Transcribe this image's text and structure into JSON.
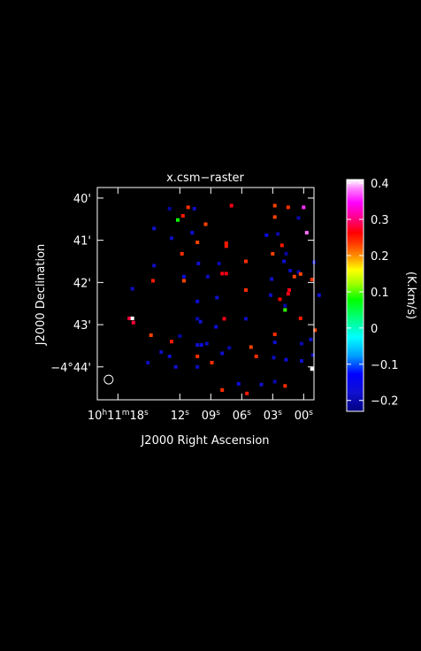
{
  "chart_data": {
    "type": "heatmap",
    "title": "x.csm−raster",
    "xlabel": "J2000 Right Ascension",
    "ylabel": "J2000 Declination",
    "x_ticks": [
      {
        "ra_sec": 18,
        "label_main": "10",
        "label_sup": "h",
        "label_mid": "11",
        "label_sup2": "m",
        "label_end": "18",
        "label_sup3": "s"
      },
      {
        "ra_sec": 12,
        "label_main": "12",
        "label_sup": "s"
      },
      {
        "ra_sec": 9,
        "label_main": "09",
        "label_sup": "s"
      },
      {
        "ra_sec": 6,
        "label_main": "06",
        "label_sup": "s"
      },
      {
        "ra_sec": 3,
        "label_main": "03",
        "label_sup": "s"
      },
      {
        "ra_sec": 0,
        "label_main": "00",
        "label_sup": "s"
      }
    ],
    "y_ticks": [
      {
        "dec_arcmin": 40,
        "label": "40'"
      },
      {
        "dec_arcmin": 41,
        "label": "41'"
      },
      {
        "dec_arcmin": 42,
        "label": "42'"
      },
      {
        "dec_arcmin": 43,
        "label": "43'"
      },
      {
        "dec_arcmin": 44,
        "label": "−4°44'"
      }
    ],
    "ra_range_sec": [
      20.0,
      -1.0
    ],
    "dec_range_arcmin": [
      39.75,
      44.78
    ],
    "colorbar": {
      "label": "(K.km/s)",
      "range": [
        -0.23,
        0.41
      ],
      "ticks": [
        0.4,
        0.3,
        0.2,
        0.1,
        0,
        -0.1,
        -0.2
      ],
      "tick_labels": [
        "0.4",
        "0.3",
        "0.2",
        "0.1",
        "0",
        "−0.1",
        "−0.2"
      ]
    },
    "beam": {
      "ra_sec": 18.9,
      "dec_arcmin": 44.3
    },
    "points": [
      {
        "ra": 13.0,
        "dec": 40.25,
        "v": -0.21
      },
      {
        "ra": 11.2,
        "dec": 40.22,
        "v": 0.24
      },
      {
        "ra": 10.6,
        "dec": 40.25,
        "v": -0.19
      },
      {
        "ra": 7.0,
        "dec": 40.18,
        "v": 0.27
      },
      {
        "ra": 2.8,
        "dec": 40.18,
        "v": 0.23
      },
      {
        "ra": 0.0,
        "dec": 40.22,
        "v": 0.36
      },
      {
        "ra": 1.5,
        "dec": 40.22,
        "v": 0.24
      },
      {
        "ra": 11.7,
        "dec": 40.42,
        "v": 0.25
      },
      {
        "ra": 12.2,
        "dec": 40.52,
        "v": 0.08
      },
      {
        "ra": 2.8,
        "dec": 40.45,
        "v": 0.23
      },
      {
        "ra": 0.5,
        "dec": 40.47,
        "v": -0.2
      },
      {
        "ra": 14.5,
        "dec": 40.72,
        "v": -0.18
      },
      {
        "ra": 9.5,
        "dec": 40.62,
        "v": 0.23
      },
      {
        "ra": 10.8,
        "dec": 40.82,
        "v": -0.17
      },
      {
        "ra": 2.5,
        "dec": 40.85,
        "v": -0.2
      },
      {
        "ra": 3.6,
        "dec": 40.88,
        "v": -0.16
      },
      {
        "ra": -0.3,
        "dec": 40.82,
        "v": 0.38
      },
      {
        "ra": 12.8,
        "dec": 40.95,
        "v": -0.19
      },
      {
        "ra": 10.3,
        "dec": 41.05,
        "v": 0.23
      },
      {
        "ra": 7.5,
        "dec": 41.07,
        "v": 0.25
      },
      {
        "ra": 7.5,
        "dec": 41.14,
        "v": 0.25
      },
      {
        "ra": 2.1,
        "dec": 41.12,
        "v": 0.25
      },
      {
        "ra": 11.8,
        "dec": 41.32,
        "v": 0.24
      },
      {
        "ra": 3.0,
        "dec": 41.32,
        "v": 0.23
      },
      {
        "ra": 1.7,
        "dec": 41.32,
        "v": -0.21
      },
      {
        "ra": 14.5,
        "dec": 41.6,
        "v": -0.19
      },
      {
        "ra": 10.2,
        "dec": 41.55,
        "v": -0.18
      },
      {
        "ra": 8.2,
        "dec": 41.55,
        "v": -0.2
      },
      {
        "ra": 5.6,
        "dec": 41.5,
        "v": 0.24
      },
      {
        "ra": 1.9,
        "dec": 41.5,
        "v": -0.17
      },
      {
        "ra": -1.0,
        "dec": 41.52,
        "v": -0.2
      },
      {
        "ra": 11.6,
        "dec": 41.86,
        "v": -0.17
      },
      {
        "ra": 11.6,
        "dec": 41.96,
        "v": 0.23
      },
      {
        "ra": 9.3,
        "dec": 41.86,
        "v": -0.19
      },
      {
        "ra": 7.9,
        "dec": 41.79,
        "v": 0.27
      },
      {
        "ra": 7.5,
        "dec": 41.79,
        "v": 0.27
      },
      {
        "ra": 3.1,
        "dec": 41.92,
        "v": -0.18
      },
      {
        "ra": 0.9,
        "dec": 41.86,
        "v": 0.23
      },
      {
        "ra": 0.5,
        "dec": 41.75,
        "v": -0.2
      },
      {
        "ra": 1.3,
        "dec": 41.72,
        "v": -0.19
      },
      {
        "ra": 0.3,
        "dec": 41.8,
        "v": 0.23
      },
      {
        "ra": -0.8,
        "dec": 41.93,
        "v": 0.24
      },
      {
        "ra": 14.6,
        "dec": 41.96,
        "v": 0.25
      },
      {
        "ra": 16.6,
        "dec": 42.15,
        "v": -0.19
      },
      {
        "ra": 5.6,
        "dec": 42.18,
        "v": 0.24
      },
      {
        "ra": 3.2,
        "dec": 42.3,
        "v": -0.19
      },
      {
        "ra": 1.4,
        "dec": 42.18,
        "v": 0.27
      },
      {
        "ra": 1.5,
        "dec": 42.27,
        "v": 0.27
      },
      {
        "ra": -1.5,
        "dec": 42.3,
        "v": -0.17
      },
      {
        "ra": 10.3,
        "dec": 42.45,
        "v": -0.17
      },
      {
        "ra": 8.4,
        "dec": 42.36,
        "v": -0.18
      },
      {
        "ra": 1.8,
        "dec": 42.55,
        "v": -0.2
      },
      {
        "ra": 1.8,
        "dec": 42.65,
        "v": 0.09
      },
      {
        "ra": 2.3,
        "dec": 42.4,
        "v": 0.26
      },
      {
        "ra": 16.9,
        "dec": 42.85,
        "v": 0.28
      },
      {
        "ra": 16.6,
        "dec": 42.85,
        "v": 0.41
      },
      {
        "ra": 16.5,
        "dec": 42.95,
        "v": 0.28
      },
      {
        "ra": 10.3,
        "dec": 42.86,
        "v": -0.2
      },
      {
        "ra": 10.0,
        "dec": 42.93,
        "v": -0.18
      },
      {
        "ra": 7.7,
        "dec": 42.86,
        "v": 0.27
      },
      {
        "ra": 5.6,
        "dec": 42.86,
        "v": -0.19
      },
      {
        "ra": 0.3,
        "dec": 42.85,
        "v": 0.25
      },
      {
        "ra": 8.5,
        "dec": 43.05,
        "v": -0.17
      },
      {
        "ra": 14.8,
        "dec": 43.25,
        "v": 0.23
      },
      {
        "ra": 12.0,
        "dec": 43.27,
        "v": -0.21
      },
      {
        "ra": 2.8,
        "dec": 43.23,
        "v": 0.24
      },
      {
        "ra": -1.1,
        "dec": 43.13,
        "v": 0.23
      },
      {
        "ra": -0.7,
        "dec": 43.35,
        "v": -0.18
      },
      {
        "ra": 12.8,
        "dec": 43.4,
        "v": 0.25
      },
      {
        "ra": 10.3,
        "dec": 43.48,
        "v": -0.18
      },
      {
        "ra": 9.9,
        "dec": 43.48,
        "v": -0.17
      },
      {
        "ra": 9.4,
        "dec": 43.45,
        "v": -0.19
      },
      {
        "ra": 7.2,
        "dec": 43.55,
        "v": -0.2
      },
      {
        "ra": 5.1,
        "dec": 43.53,
        "v": 0.23
      },
      {
        "ra": 2.8,
        "dec": 43.42,
        "v": -0.18
      },
      {
        "ra": 0.2,
        "dec": 43.45,
        "v": -0.2
      },
      {
        "ra": 13.8,
        "dec": 43.65,
        "v": -0.19
      },
      {
        "ra": 13.0,
        "dec": 43.75,
        "v": -0.18
      },
      {
        "ra": 10.3,
        "dec": 43.75,
        "v": 0.24
      },
      {
        "ra": 7.9,
        "dec": 43.68,
        "v": -0.18
      },
      {
        "ra": 4.6,
        "dec": 43.75,
        "v": 0.24
      },
      {
        "ra": 2.9,
        "dec": 43.78,
        "v": -0.19
      },
      {
        "ra": -0.9,
        "dec": 43.72,
        "v": -0.19
      },
      {
        "ra": 15.1,
        "dec": 43.9,
        "v": -0.19
      },
      {
        "ra": 12.4,
        "dec": 44.0,
        "v": -0.18
      },
      {
        "ra": 10.3,
        "dec": 44.0,
        "v": -0.19
      },
      {
        "ra": 8.9,
        "dec": 43.9,
        "v": 0.24
      },
      {
        "ra": 1.7,
        "dec": 43.83,
        "v": -0.17
      },
      {
        "ra": 0.2,
        "dec": 43.86,
        "v": -0.18
      },
      {
        "ra": -0.8,
        "dec": 44.05,
        "v": 0.41
      },
      {
        "ra": 6.3,
        "dec": 44.4,
        "v": -0.17
      },
      {
        "ra": 4.1,
        "dec": 44.42,
        "v": -0.18
      },
      {
        "ra": 2.8,
        "dec": 44.35,
        "v": -0.2
      },
      {
        "ra": 1.8,
        "dec": 44.45,
        "v": 0.24
      },
      {
        "ra": 7.9,
        "dec": 44.55,
        "v": 0.24
      },
      {
        "ra": 5.5,
        "dec": 44.63,
        "v": 0.25
      }
    ]
  }
}
